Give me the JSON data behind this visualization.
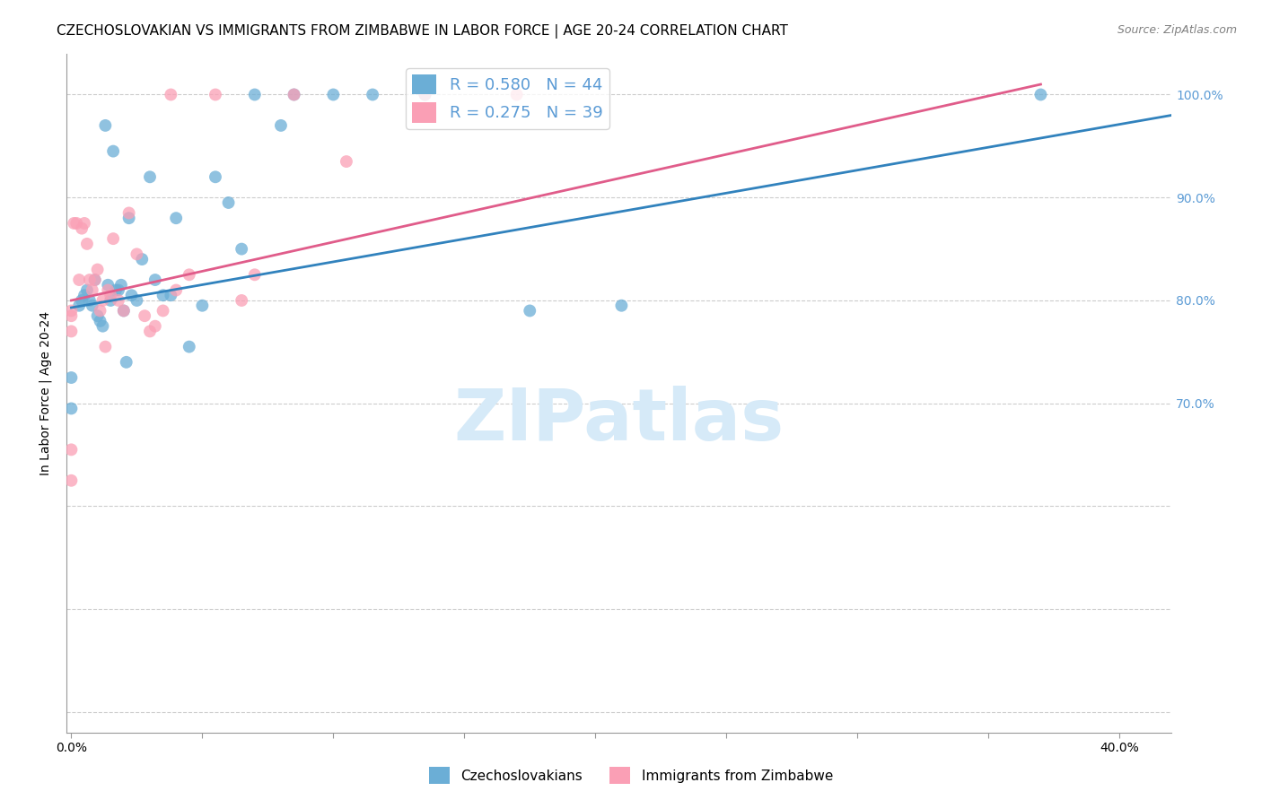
{
  "title": "CZECHOSLOVAKIAN VS IMMIGRANTS FROM ZIMBABWE IN LABOR FORCE | AGE 20-24 CORRELATION CHART",
  "source": "Source: ZipAtlas.com",
  "ylabel": "In Labor Force | Age 20-24",
  "xlim": [
    -0.002,
    0.42
  ],
  "ylim": [
    0.38,
    1.04
  ],
  "xticks": [
    0.0,
    0.05,
    0.1,
    0.15,
    0.2,
    0.25,
    0.3,
    0.35,
    0.4
  ],
  "yticks": [
    0.4,
    0.5,
    0.6,
    0.7,
    0.8,
    0.9,
    1.0
  ],
  "blue_color": "#6baed6",
  "pink_color": "#fa9fb5",
  "blue_line_color": "#3182bd",
  "pink_line_color": "#e05c8a",
  "legend_blue_label": "R = 0.580   N = 44",
  "legend_pink_label": "R = 0.275   N = 39",
  "watermark": "ZIPatlas",
  "blue_scatter_x": [
    0.0,
    0.0,
    0.003,
    0.004,
    0.005,
    0.006,
    0.007,
    0.008,
    0.009,
    0.01,
    0.011,
    0.012,
    0.013,
    0.014,
    0.015,
    0.016,
    0.017,
    0.018,
    0.019,
    0.02,
    0.021,
    0.022,
    0.023,
    0.025,
    0.027,
    0.03,
    0.032,
    0.035,
    0.038,
    0.04,
    0.045,
    0.05,
    0.055,
    0.06,
    0.065,
    0.07,
    0.08,
    0.085,
    0.1,
    0.115,
    0.135,
    0.175,
    0.21,
    0.37
  ],
  "blue_scatter_y": [
    0.695,
    0.725,
    0.795,
    0.8,
    0.805,
    0.81,
    0.8,
    0.795,
    0.82,
    0.785,
    0.78,
    0.775,
    0.97,
    0.815,
    0.8,
    0.945,
    0.81,
    0.81,
    0.815,
    0.79,
    0.74,
    0.88,
    0.805,
    0.8,
    0.84,
    0.92,
    0.82,
    0.805,
    0.805,
    0.88,
    0.755,
    0.795,
    0.92,
    0.895,
    0.85,
    1.0,
    0.97,
    1.0,
    1.0,
    1.0,
    1.0,
    0.79,
    0.795,
    1.0
  ],
  "pink_scatter_x": [
    0.0,
    0.0,
    0.0,
    0.0,
    0.0,
    0.001,
    0.002,
    0.003,
    0.004,
    0.005,
    0.006,
    0.007,
    0.008,
    0.009,
    0.01,
    0.011,
    0.012,
    0.013,
    0.014,
    0.015,
    0.016,
    0.018,
    0.02,
    0.022,
    0.025,
    0.028,
    0.03,
    0.032,
    0.035,
    0.038,
    0.04,
    0.045,
    0.055,
    0.065,
    0.07,
    0.085,
    0.105,
    0.135,
    0.17
  ],
  "pink_scatter_y": [
    0.625,
    0.655,
    0.77,
    0.785,
    0.79,
    0.875,
    0.875,
    0.82,
    0.87,
    0.875,
    0.855,
    0.82,
    0.81,
    0.82,
    0.83,
    0.79,
    0.8,
    0.755,
    0.81,
    0.805,
    0.86,
    0.8,
    0.79,
    0.885,
    0.845,
    0.785,
    0.77,
    0.775,
    0.79,
    1.0,
    0.81,
    0.825,
    1.0,
    0.8,
    0.825,
    1.0,
    0.935,
    1.0,
    1.0
  ],
  "blue_line_x0": 0.0,
  "blue_line_x1": 0.42,
  "blue_line_y0": 0.793,
  "blue_line_y1": 0.98,
  "pink_line_x0": 0.0,
  "pink_line_x1": 0.37,
  "pink_line_y0": 0.8,
  "pink_line_y1": 1.01,
  "background_color": "#ffffff",
  "title_fontsize": 11,
  "axis_label_fontsize": 10,
  "tick_fontsize": 10,
  "right_tick_color": "#5b9bd5",
  "watermark_color": "#d6eaf8",
  "watermark_fontsize": 58
}
